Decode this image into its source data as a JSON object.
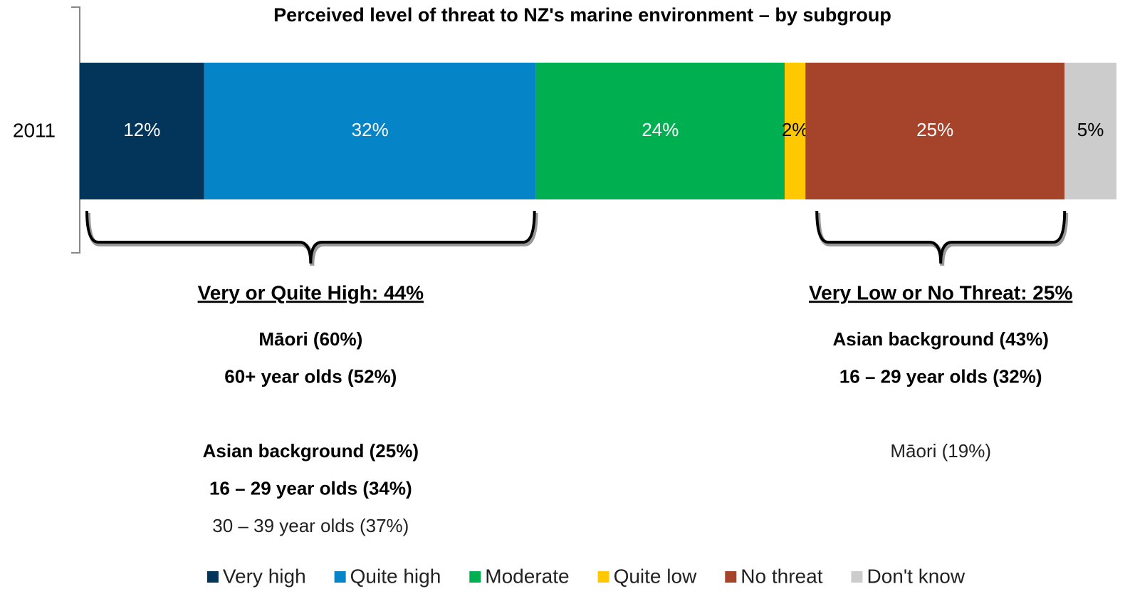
{
  "chart_data": {
    "type": "stacked-bar",
    "title": "Perceived level of threat to NZ's marine environment – by subgroup",
    "categories": [
      "2011"
    ],
    "series": [
      {
        "name": "Very high",
        "color": "#03345a",
        "values": [
          12
        ],
        "value_labels": [
          "12%"
        ]
      },
      {
        "name": "Quite high",
        "color": "#0584c8",
        "values": [
          32
        ],
        "value_labels": [
          "32%"
        ]
      },
      {
        "name": "Moderate",
        "color": "#00b050",
        "values": [
          24
        ],
        "value_labels": [
          "24%"
        ]
      },
      {
        "name": "Quite low",
        "color": "#ffc800",
        "values": [
          2
        ],
        "value_labels": [
          "2%"
        ]
      },
      {
        "name": "No threat",
        "color": "#a5432b",
        "values": [
          25
        ],
        "value_labels": [
          "25%"
        ]
      },
      {
        "name": "Don't know",
        "color": "#cccccc",
        "values": [
          5
        ],
        "value_labels": [
          "5%"
        ]
      }
    ],
    "annotations": [
      {
        "title": "Very or Quite High: 44%",
        "groups": [
          [
            {
              "text": "Māori (60%)",
              "bold": true
            },
            {
              "text": "60+ year olds (52%)",
              "bold": true
            }
          ],
          [
            {
              "text": "Asian background (25%)",
              "bold": true
            },
            {
              "text": "16 – 29 year olds (34%)",
              "bold": true
            },
            {
              "text": "30 – 39 year olds (37%)",
              "bold": false
            }
          ]
        ]
      },
      {
        "title": "Very Low or No Threat: 25%",
        "groups": [
          [
            {
              "text": "Asian background (43%)",
              "bold": true
            },
            {
              "text": "16 – 29 year olds (32%)",
              "bold": true
            }
          ],
          [
            {
              "text": "Māori (19%)",
              "bold": false
            }
          ]
        ]
      }
    ],
    "legend": "bottom"
  }
}
